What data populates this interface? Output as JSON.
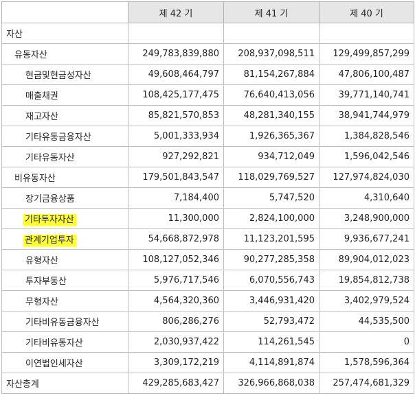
{
  "header": {
    "corner": "",
    "columns": [
      "제 42 기",
      "제 41 기",
      "제 40 기"
    ]
  },
  "rows": [
    {
      "label": "자산",
      "level": 0,
      "highlight": false,
      "values": [
        "",
        "",
        ""
      ]
    },
    {
      "label": "유동자산",
      "level": 1,
      "highlight": false,
      "values": [
        "249,783,839,880",
        "208,937,098,511",
        "129,499,857,299"
      ]
    },
    {
      "label": "현금및현금성자산",
      "level": 2,
      "highlight": false,
      "values": [
        "49,608,464,797",
        "81,154,267,884",
        "47,806,100,487"
      ]
    },
    {
      "label": "매출채권",
      "level": 2,
      "highlight": false,
      "values": [
        "108,425,177,475",
        "76,640,413,056",
        "39,771,140,741"
      ]
    },
    {
      "label": "재고자산",
      "level": 2,
      "highlight": false,
      "values": [
        "85,821,570,853",
        "48,281,340,155",
        "38,941,744,979"
      ]
    },
    {
      "label": "기타유동금융자산",
      "level": 2,
      "highlight": false,
      "values": [
        "5,001,333,934",
        "1,926,365,367",
        "1,384,828,546"
      ]
    },
    {
      "label": "기타유동자산",
      "level": 2,
      "highlight": false,
      "values": [
        "927,292,821",
        "934,712,049",
        "1,596,042,546"
      ]
    },
    {
      "label": "비유동자산",
      "level": 1,
      "highlight": false,
      "values": [
        "179,501,843,547",
        "118,029,769,527",
        "127,974,824,030"
      ]
    },
    {
      "label": "장기금융상품",
      "level": 2,
      "highlight": false,
      "values": [
        "7,184,400",
        "5,747,520",
        "4,310,640"
      ]
    },
    {
      "label": "기타투자자산",
      "level": 2,
      "highlight": true,
      "values": [
        "11,300,000",
        "2,824,100,000",
        "3,248,900,000"
      ]
    },
    {
      "label": "관계기업투자",
      "level": 2,
      "highlight": true,
      "values": [
        "54,668,872,978",
        "11,123,201,595",
        "9,936,677,241"
      ]
    },
    {
      "label": "유형자산",
      "level": 2,
      "highlight": false,
      "values": [
        "108,127,052,346",
        "90,277,285,358",
        "89,904,012,023"
      ]
    },
    {
      "label": "투자부동산",
      "level": 2,
      "highlight": false,
      "values": [
        "5,976,717,546",
        "6,070,556,743",
        "19,854,812,738"
      ]
    },
    {
      "label": "무형자산",
      "level": 2,
      "highlight": false,
      "values": [
        "4,564,320,360",
        "3,446,931,420",
        "3,402,979,524"
      ]
    },
    {
      "label": "기타비유동금융자산",
      "level": 2,
      "highlight": false,
      "values": [
        "806,286,276",
        "52,793,472",
        "44,535,500"
      ]
    },
    {
      "label": "기타비유동자산",
      "level": 2,
      "highlight": false,
      "values": [
        "2,030,937,422",
        "114,261,545",
        "0"
      ]
    },
    {
      "label": "이연법인세자산",
      "level": 2,
      "highlight": false,
      "values": [
        "3,309,172,219",
        "4,114,891,874",
        "1,578,596,364"
      ]
    },
    {
      "label": "자산총계",
      "level": 0,
      "highlight": false,
      "values": [
        "429,285,683,427",
        "326,966,868,038",
        "257,474,681,329"
      ]
    }
  ],
  "colors": {
    "header_bg": "#e6e6e6",
    "highlight": "#ffff33",
    "grid": "#bdbdbd"
  }
}
